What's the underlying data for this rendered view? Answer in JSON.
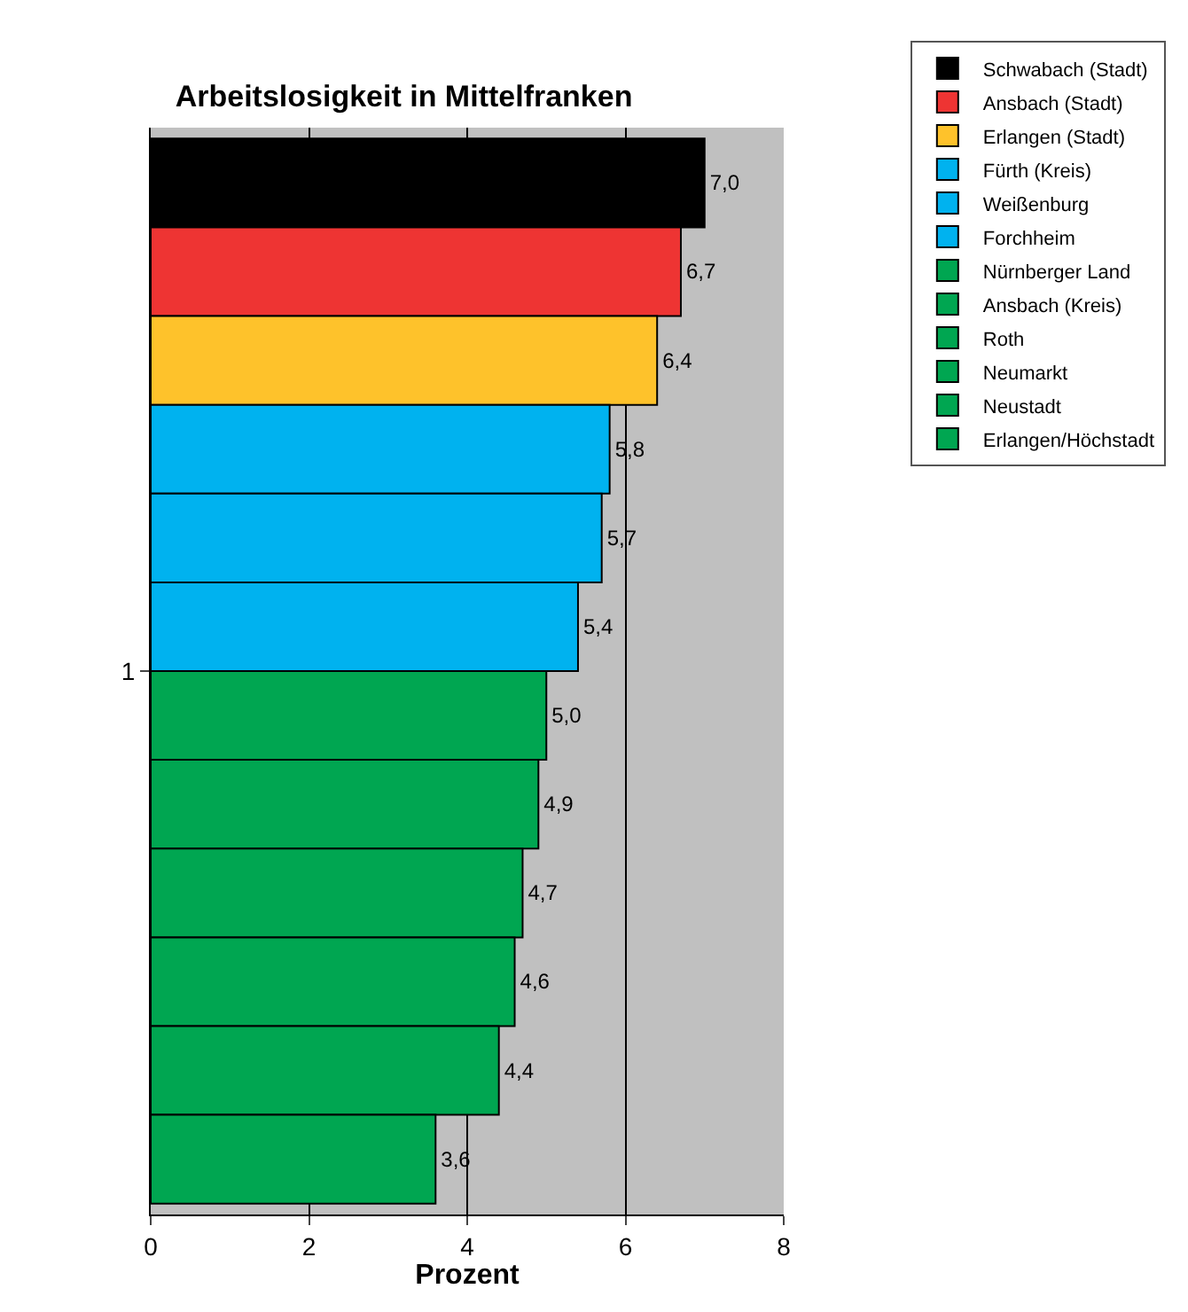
{
  "chart_data": {
    "type": "bar",
    "orientation": "horizontal",
    "title": "Arbeitslosigkeit in Mittelfranken",
    "xlabel": "Prozent",
    "categories": [
      "1"
    ],
    "xlim": [
      0,
      8
    ],
    "xticks": [
      0,
      2,
      4,
      6,
      8
    ],
    "grid": "x",
    "legend": "right",
    "series": [
      {
        "name": "Schwabach (Stadt)",
        "color": "#000000",
        "values": [
          7.0
        ],
        "value_labels": [
          "7,0"
        ]
      },
      {
        "name": "Ansbach (Stadt)",
        "color": "#ee3433",
        "values": [
          6.7
        ],
        "value_labels": [
          "6,7"
        ]
      },
      {
        "name": "Erlangen (Stadt)",
        "color": "#fec22b",
        "values": [
          6.4
        ],
        "value_labels": [
          "6,4"
        ]
      },
      {
        "name": "Fürth (Kreis)",
        "color": "#00b2ef",
        "values": [
          5.8
        ],
        "value_labels": [
          "5,8"
        ]
      },
      {
        "name": "Weißenburg",
        "color": "#00b2ef",
        "values": [
          5.7
        ],
        "value_labels": [
          "5,7"
        ]
      },
      {
        "name": "Forchheim",
        "color": "#00b2ef",
        "values": [
          5.4
        ],
        "value_labels": [
          "5,4"
        ]
      },
      {
        "name": "Nürnberger Land",
        "color": "#00a651",
        "values": [
          5.0
        ],
        "value_labels": [
          "5,0"
        ]
      },
      {
        "name": "Ansbach (Kreis)",
        "color": "#00a651",
        "values": [
          4.9
        ],
        "value_labels": [
          "4,9"
        ]
      },
      {
        "name": "Roth",
        "color": "#00a651",
        "values": [
          4.7
        ],
        "value_labels": [
          "4,7"
        ]
      },
      {
        "name": "Neumarkt",
        "color": "#00a651",
        "values": [
          4.6
        ],
        "value_labels": [
          "4,6"
        ]
      },
      {
        "name": "Neustadt",
        "color": "#00a651",
        "values": [
          4.4
        ],
        "value_labels": [
          "4,4"
        ]
      },
      {
        "name": "Erlangen/Höchstadt",
        "color": "#00a651",
        "values": [
          3.6
        ],
        "value_labels": [
          "3,6"
        ]
      }
    ]
  }
}
